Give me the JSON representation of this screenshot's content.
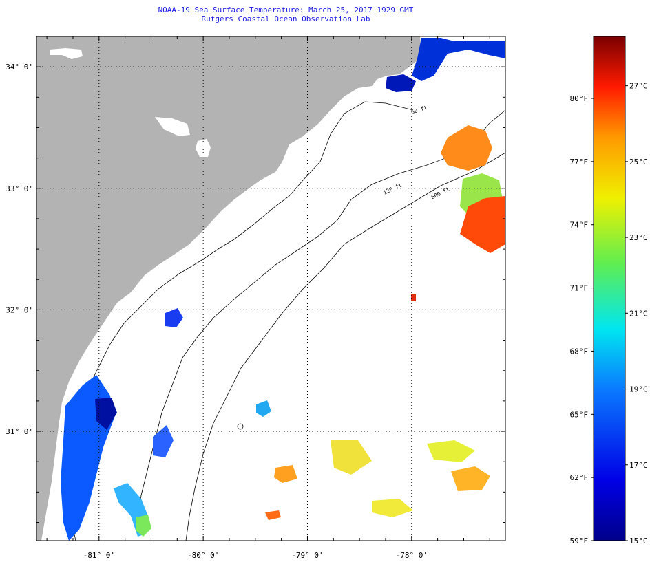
{
  "header": {
    "title": "NOAA-19 Sea Surface Temperature:  March 25, 2017 1929 GMT",
    "subtitle": "Rutgers Coastal Ocean Observation Lab"
  },
  "colors": {
    "land": "#b3b3b3",
    "ocean": "#ffffff",
    "title": "#1a1ae6",
    "contour": "#000000"
  },
  "map": {
    "lon_range": [
      -81.6,
      -77.1
    ],
    "lat_range": [
      30.1,
      34.25
    ],
    "lon_ticks": [
      {
        "value": -81,
        "label": "-81° 0'"
      },
      {
        "value": -80,
        "label": "-80° 0'"
      },
      {
        "value": -79,
        "label": "-79° 0'"
      },
      {
        "value": -78,
        "label": "-78° 0'"
      }
    ],
    "lat_ticks": [
      {
        "value": 34,
        "label": "34° 0'"
      },
      {
        "value": 33,
        "label": "33° 0'"
      },
      {
        "value": 32,
        "label": "32° 0'"
      },
      {
        "value": 31,
        "label": "31° 0'"
      }
    ],
    "contour_labels": [
      "60 ft",
      "120 ft",
      "600 ft"
    ]
  },
  "colorbar": {
    "fahrenheit_labels": [
      "80°F",
      "77°F",
      "74°F",
      "71°F",
      "68°F",
      "65°F",
      "62°F",
      "59°F"
    ],
    "celsius_labels": [
      "27°C",
      "25°C",
      "23°C",
      "21°C",
      "19°C",
      "17°C",
      "15°C"
    ],
    "range_c": [
      15,
      28.3
    ]
  }
}
